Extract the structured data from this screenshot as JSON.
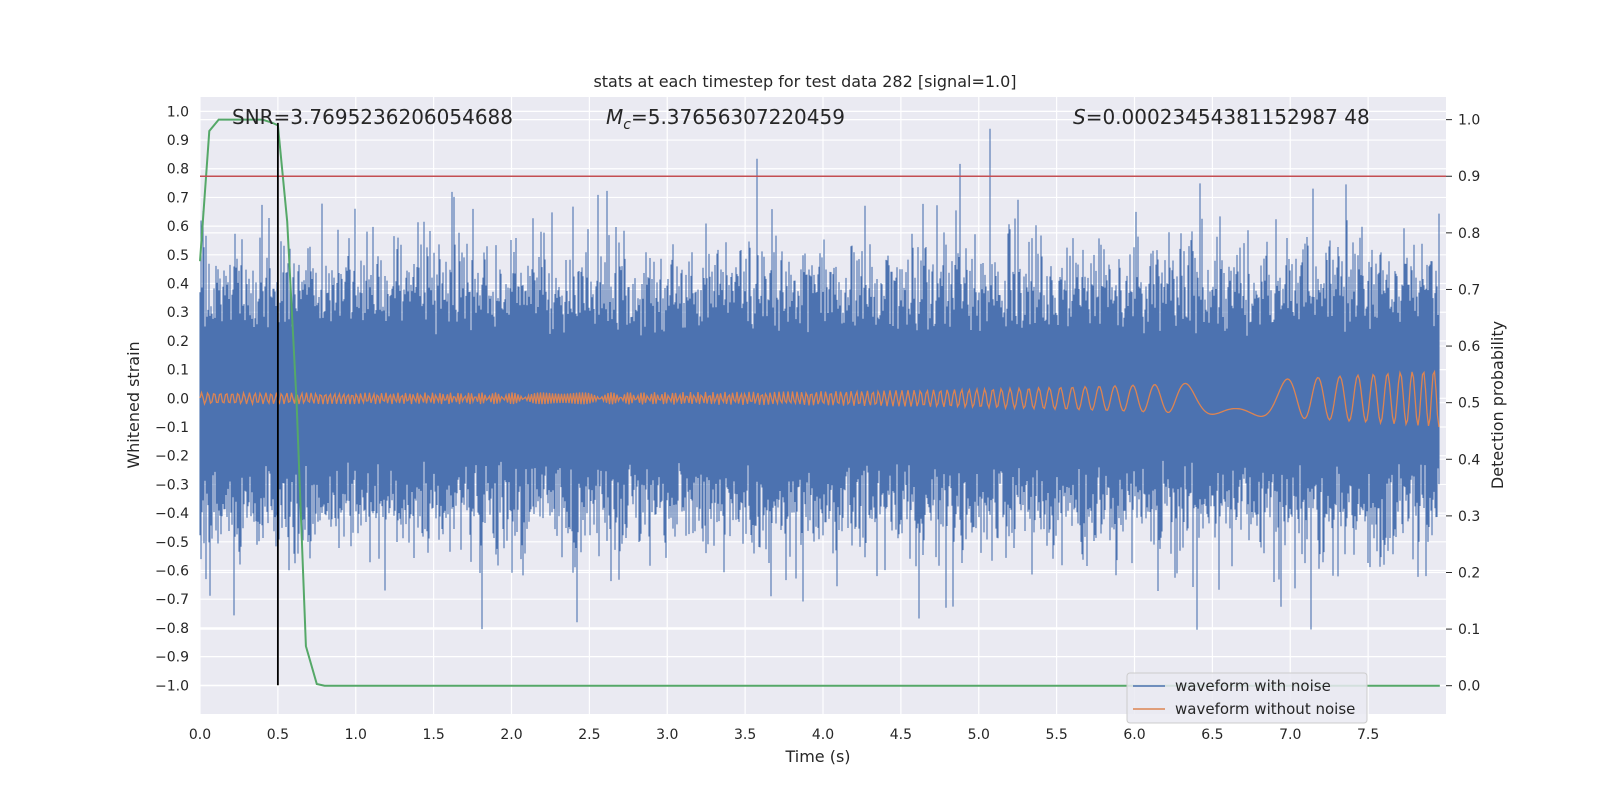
{
  "chart_data": {
    "type": "line",
    "title": "stats at each timestep for test data 282 [signal=1.0]",
    "xlabel": "Time (s)",
    "ylabel": "Whitened strain",
    "y2label": "Detection probability",
    "xlim": [
      0.0,
      8.0
    ],
    "ylim": [
      -1.1,
      1.05
    ],
    "y2lim": [
      -0.05,
      1.04
    ],
    "x_ticks": [
      "0.0",
      "0.5",
      "1.0",
      "1.5",
      "2.0",
      "2.5",
      "3.0",
      "3.5",
      "4.0",
      "4.5",
      "5.0",
      "5.5",
      "6.0",
      "6.5",
      "7.0",
      "7.5"
    ],
    "y_ticks": [
      "1.0",
      "0.9",
      "0.8",
      "0.7",
      "0.6",
      "0.5",
      "0.4",
      "0.3",
      "0.2",
      "0.1",
      "0.0",
      "-0.1",
      "-0.2",
      "-0.3",
      "-0.4",
      "-0.5",
      "-0.6",
      "-0.7",
      "-0.8",
      "-0.9",
      "-1.0"
    ],
    "y2_ticks": [
      "1.0",
      "0.9",
      "0.8",
      "0.7",
      "0.6",
      "0.5",
      "0.4",
      "0.3",
      "0.2",
      "0.1",
      "0.0"
    ],
    "annotations": {
      "snr": "SNR=3.7695236206054688",
      "mc_symbol": "M",
      "mc_sub": "c",
      "mc_value": "=5.37656307220459",
      "s_symbol": "S",
      "s_value": "=0.00023454381152987 48"
    },
    "threshold": 0.9,
    "marker_time": 0.5,
    "series": [
      {
        "name": "waveform with noise",
        "color": "#4c72b0",
        "typical_amplitude": 0.35,
        "peak_amplitude": 0.95
      },
      {
        "name": "waveform without noise",
        "color": "#dd8452",
        "start_amplitude": 0.02,
        "end_amplitude": 0.1
      },
      {
        "name": "detection probability",
        "color": "#55a868",
        "x": [
          0.0,
          0.06,
          0.12,
          0.2,
          0.3,
          0.4,
          0.46,
          0.5,
          0.56,
          0.62,
          0.68,
          0.75,
          0.8,
          1.0,
          2.0,
          4.0,
          6.0,
          7.96
        ],
        "values": [
          0.75,
          0.98,
          1.0,
          1.0,
          1.0,
          1.0,
          0.995,
          0.99,
          0.82,
          0.5,
          0.07,
          0.003,
          0.0,
          0.0,
          0.0,
          0.0,
          0.0,
          0.0
        ]
      }
    ],
    "legend": {
      "position": "bottom-right",
      "items": [
        {
          "label": "waveform with noise",
          "color": "#4c72b0"
        },
        {
          "label": "waveform without noise",
          "color": "#dd8452"
        }
      ]
    }
  }
}
